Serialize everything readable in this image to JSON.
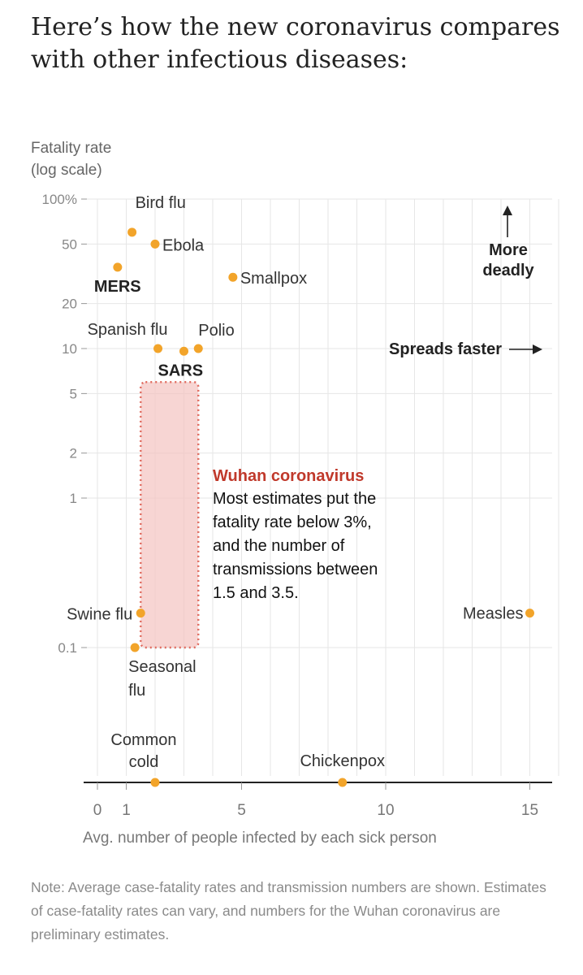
{
  "title": "Here’s how the new coronavirus compares with other infectious diseases:",
  "note": "Note: Average case-fatality rates and transmission numbers are shown. Estimates of case-fatality rates can vary, and numbers for the Wuhan coronavirus are preliminary estimates.",
  "colors": {
    "point": "#f2a42a",
    "highlight": "#c0392b",
    "highlight_fill": "#f4c3c0",
    "axis": "#222222",
    "grid": "#e6e6e6",
    "tick_text": "#888888"
  },
  "chart_data": {
    "type": "scatter",
    "title": "Here’s how the new coronavirus compares with other infectious diseases:",
    "xlabel": "Avg. number of people infected by each sick person",
    "ylabel": "Fatality rate (log scale)",
    "ylabel_lines": [
      "Fatality rate",
      "(log scale)"
    ],
    "y_scale": "log",
    "xlim": [
      0,
      16
    ],
    "ylim": [
      0.1,
      100
    ],
    "grid": true,
    "x_ticks": [
      {
        "value": 0,
        "label": "0"
      },
      {
        "value": 1,
        "label": "1"
      },
      {
        "value": 5,
        "label": "5"
      },
      {
        "value": 10,
        "label": "10"
      },
      {
        "value": 15,
        "label": "15"
      }
    ],
    "y_ticks": [
      {
        "value": 100,
        "label": "100%"
      },
      {
        "value": 50,
        "label": "50"
      },
      {
        "value": 20,
        "label": "20"
      },
      {
        "value": 10,
        "label": "10"
      },
      {
        "value": 5,
        "label": "5"
      },
      {
        "value": 2,
        "label": "2"
      },
      {
        "value": 1,
        "label": "1"
      },
      {
        "value": 0.1,
        "label": "0.1"
      }
    ],
    "points": [
      {
        "name": "Bird flu",
        "x": 1.2,
        "y": 60,
        "bold": false
      },
      {
        "name": "Ebola",
        "x": 2.0,
        "y": 50,
        "bold": false
      },
      {
        "name": "MERS",
        "x": 0.7,
        "y": 35,
        "bold": true
      },
      {
        "name": "Smallpox",
        "x": 4.7,
        "y": 30,
        "bold": false
      },
      {
        "name": "Spanish flu",
        "x": 2.1,
        "y": 10,
        "bold": false
      },
      {
        "name": "SARS",
        "x": 3.0,
        "y": 9.6,
        "bold": true
      },
      {
        "name": "Polio",
        "x": 3.5,
        "y": 10,
        "bold": false
      },
      {
        "name": "Swine flu",
        "x": 1.5,
        "y": 0.17,
        "bold": false
      },
      {
        "name": "Seasonal flu",
        "x": 1.3,
        "y": 0.1,
        "bold": false
      },
      {
        "name": "Measles",
        "x": 15,
        "y": 0.17,
        "bold": false
      }
    ],
    "baseline_label": "Common cold",
    "baseline_points": [
      {
        "name": "Common cold",
        "x": 2.0
      },
      {
        "name": "Chickenpox",
        "x": 8.5
      }
    ],
    "highlight": {
      "label": "Wuhan coronavirus",
      "text_lines": [
        "Most estimates put the",
        "fatality rate below 3%,",
        "and the number of",
        "transmissions between",
        "1.5 and 3.5."
      ],
      "x_range": [
        1.5,
        3.5
      ],
      "y_range": [
        0.1,
        3
      ]
    },
    "annotations": {
      "deadly": [
        "More",
        "deadly"
      ],
      "faster": "Spreads faster"
    }
  }
}
